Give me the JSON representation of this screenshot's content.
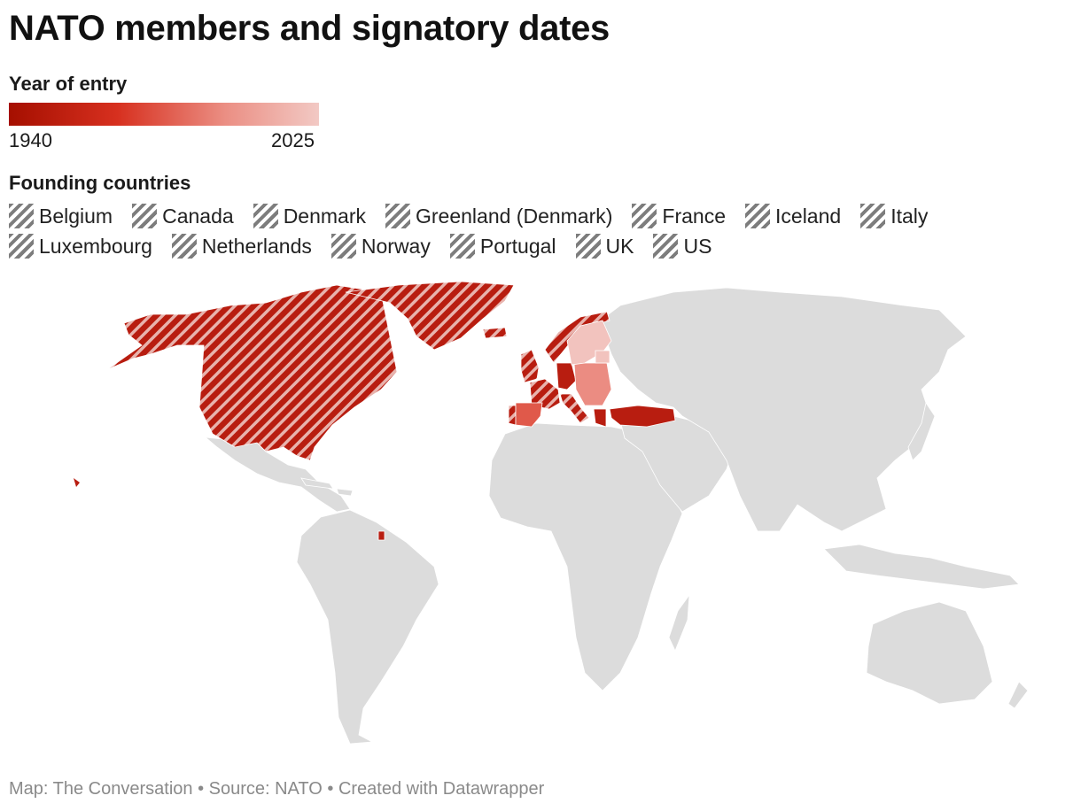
{
  "title": "NATO members and signatory dates",
  "gradient_legend": {
    "title": "Year of entry",
    "min_label": "1940",
    "max_label": "2025",
    "colors": [
      "#a50f00",
      "#d7301f",
      "#eb8f84",
      "#f2c9c4"
    ]
  },
  "founding_legend": {
    "title": "Founding countries",
    "items": [
      "Belgium",
      "Canada",
      "Denmark",
      "Greenland (Denmark)",
      "France",
      "Iceland",
      "Italy",
      "Luxembourg",
      "Netherlands",
      "Norway",
      "Portugal",
      "UK",
      "US"
    ]
  },
  "map_colors": {
    "land": "#dcdcdc",
    "founding_fill": "#b81d10",
    "entry_1950s": "#b81d10",
    "entry_1980s": "#e0594a",
    "entry_1990s": "#eb8c82",
    "entry_2000s": "#f2c3be",
    "stripe": "#e8b3ad"
  },
  "footer": "Map: The Conversation • Source: NATO • Created with Datawrapper"
}
